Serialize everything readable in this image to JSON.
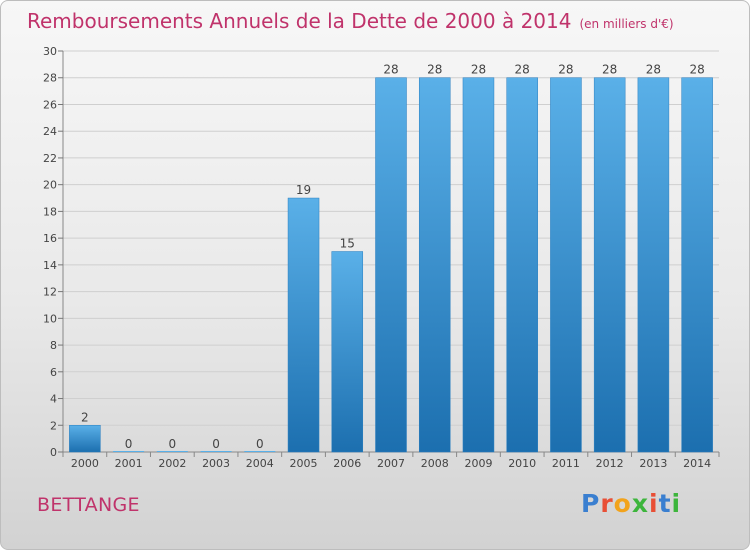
{
  "header": {
    "title": "Remboursements Annuels de la Dette de 2000 à 2014",
    "unit": "(en milliers d'€)"
  },
  "footer": {
    "city": "BETTANGE",
    "logo": {
      "letters": [
        "P",
        "r",
        "o",
        "x",
        "i",
        "t",
        "i"
      ]
    }
  },
  "colors": {
    "title": "#c0336b",
    "bar_top": "#5ab0e8",
    "bar_bottom": "#1c6faf",
    "logo_letters": [
      "#3a7fd0",
      "#e84f36",
      "#f2a31c",
      "#3db53c",
      "#e84f36",
      "#3a7fd0",
      "#3db53c"
    ]
  },
  "chart_data": {
    "type": "bar",
    "title": "Remboursements Annuels de la Dette de 2000 à 2014",
    "ylabel": "(en milliers d'€)",
    "xlabel": "",
    "categories": [
      "2000",
      "2001",
      "2002",
      "2003",
      "2004",
      "2005",
      "2006",
      "2007",
      "2008",
      "2009",
      "2010",
      "2011",
      "2012",
      "2013",
      "2014"
    ],
    "values": [
      2,
      0,
      0,
      0,
      0,
      19,
      15,
      28,
      28,
      28,
      28,
      28,
      28,
      28,
      28
    ],
    "ylim": [
      0,
      30
    ],
    "yticks": [
      0,
      2,
      4,
      6,
      8,
      10,
      12,
      14,
      16,
      18,
      20,
      22,
      24,
      26,
      28,
      30
    ],
    "grid": true
  }
}
